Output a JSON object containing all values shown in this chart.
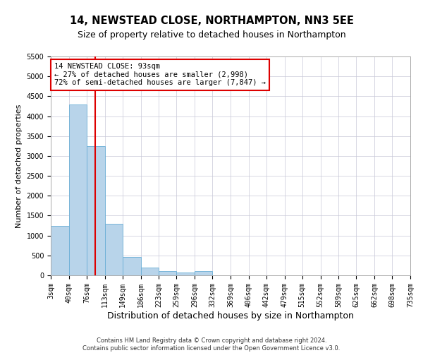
{
  "title": "14, NEWSTEAD CLOSE, NORTHAMPTON, NN3 5EE",
  "subtitle": "Size of property relative to detached houses in Northampton",
  "xlabel": "Distribution of detached houses by size in Northampton",
  "ylabel": "Number of detached properties",
  "footer_line1": "Contains HM Land Registry data © Crown copyright and database right 2024.",
  "footer_line2": "Contains public sector information licensed under the Open Government Licence v3.0.",
  "bar_edges": [
    3,
    40,
    76,
    113,
    149,
    186,
    223,
    259,
    296,
    332,
    369,
    406,
    442,
    479,
    515,
    552,
    589,
    625,
    662,
    698,
    735
  ],
  "bar_heights": [
    1250,
    4300,
    3250,
    1300,
    470,
    200,
    110,
    70,
    100,
    0,
    0,
    0,
    0,
    0,
    0,
    0,
    0,
    0,
    0,
    0
  ],
  "bar_color": "#b8d4ea",
  "bar_edgecolor": "#6aaed6",
  "property_size": 93,
  "red_line_color": "#dd0000",
  "annotation_line1": "14 NEWSTEAD CLOSE: 93sqm",
  "annotation_line2": "← 27% of detached houses are smaller (2,998)",
  "annotation_line3": "72% of semi-detached houses are larger (7,847) →",
  "annotation_box_edgecolor": "#dd0000",
  "ylim": [
    0,
    5500
  ],
  "yticks": [
    0,
    500,
    1000,
    1500,
    2000,
    2500,
    3000,
    3500,
    4000,
    4500,
    5000,
    5500
  ],
  "background_color": "#ffffff",
  "grid_color": "#c8c8d8",
  "title_fontsize": 10.5,
  "subtitle_fontsize": 9,
  "tick_label_fontsize": 7,
  "ylabel_fontsize": 8,
  "xlabel_fontsize": 9,
  "footer_fontsize": 6,
  "annotation_fontsize": 7.5
}
